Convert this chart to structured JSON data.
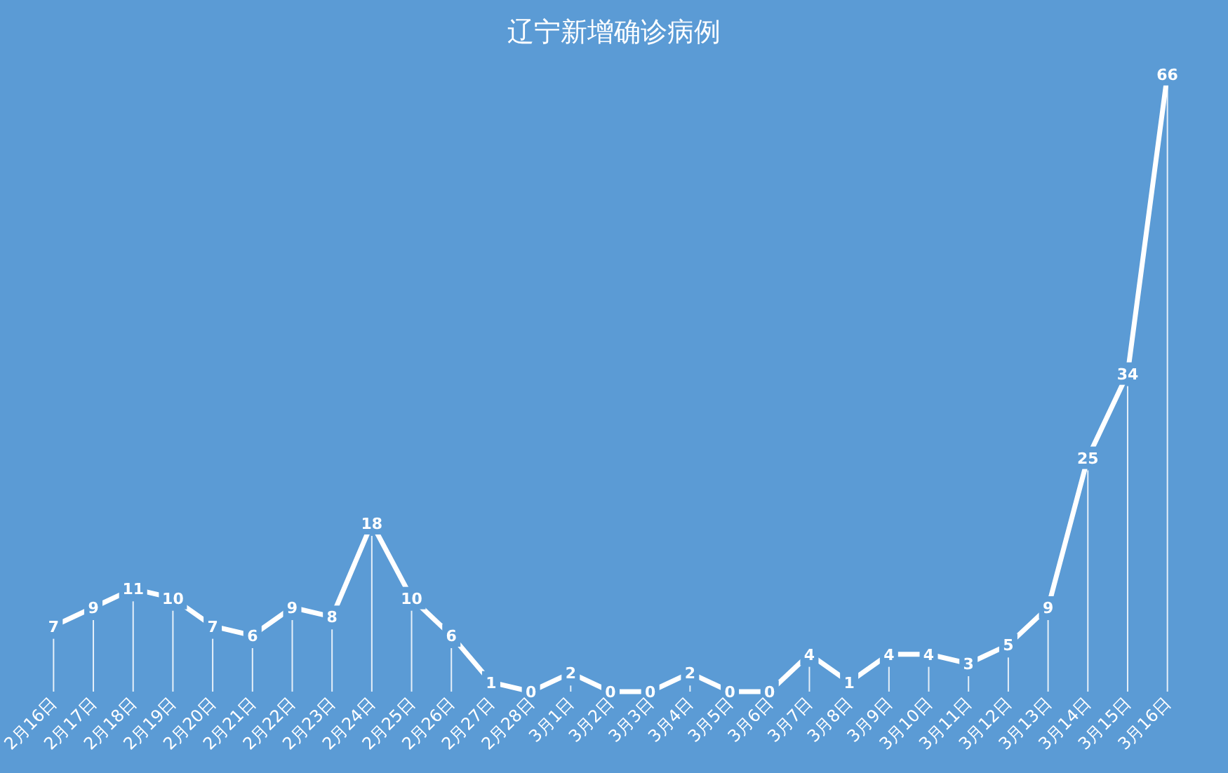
{
  "chart_data": {
    "type": "line",
    "title": "辽宁新增确诊病例",
    "categories": [
      "2月16日",
      "2月17日",
      "2月18日",
      "2月19日",
      "2月20日",
      "2月21日",
      "2月22日",
      "2月23日",
      "2月24日",
      "2月25日",
      "2月26日",
      "2月27日",
      "2月28日",
      "3月1日",
      "3月2日",
      "3月3日",
      "3月4日",
      "3月5日",
      "3月6日",
      "3月7日",
      "3月8日",
      "3月9日",
      "3月10日",
      "3月11日",
      "3月12日",
      "3月13日",
      "3月14日",
      "3月15日",
      "3月16日"
    ],
    "values": [
      7,
      9,
      11,
      10,
      7,
      6,
      9,
      8,
      18,
      10,
      6,
      1,
      0,
      2,
      0,
      0,
      2,
      0,
      0,
      4,
      1,
      4,
      4,
      3,
      5,
      9,
      25,
      34,
      66
    ],
    "color": "#ffffff",
    "line_style": "solid",
    "data_labels": true
  }
}
